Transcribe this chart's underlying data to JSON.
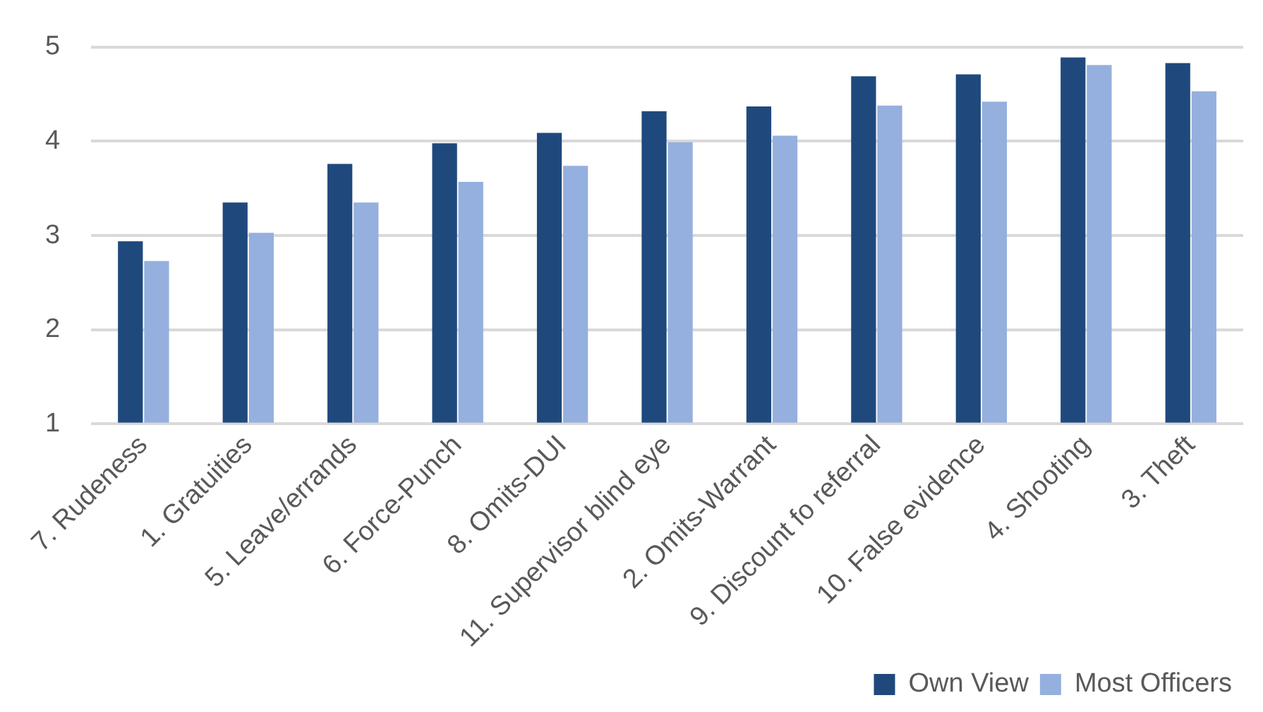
{
  "chart_data": {
    "type": "bar",
    "categories": [
      "7. Rudeness",
      "1. Gratuities",
      "5. Leave/errands",
      "6. Force-Punch",
      "8. Omits-DUI",
      "11. Supervisor blind eye",
      "2. Omits-Warrant",
      "9. Discount fo referral",
      "10. False evidence",
      "4. Shooting",
      "3. Theft"
    ],
    "series": [
      {
        "name": "Own View",
        "color": "#1f497d",
        "values": [
          2.94,
          3.35,
          3.76,
          3.98,
          4.09,
          4.32,
          4.37,
          4.69,
          4.71,
          4.89,
          4.83
        ]
      },
      {
        "name": "Most Officers",
        "color": "#95b0de",
        "values": [
          2.73,
          3.03,
          3.35,
          3.57,
          3.74,
          3.99,
          4.06,
          4.38,
          4.42,
          4.81,
          4.53
        ]
      }
    ],
    "ylim": [
      1,
      5
    ],
    "yticks": [
      1,
      2,
      3,
      4,
      5
    ],
    "grid": "y",
    "legend": "bottom right"
  }
}
